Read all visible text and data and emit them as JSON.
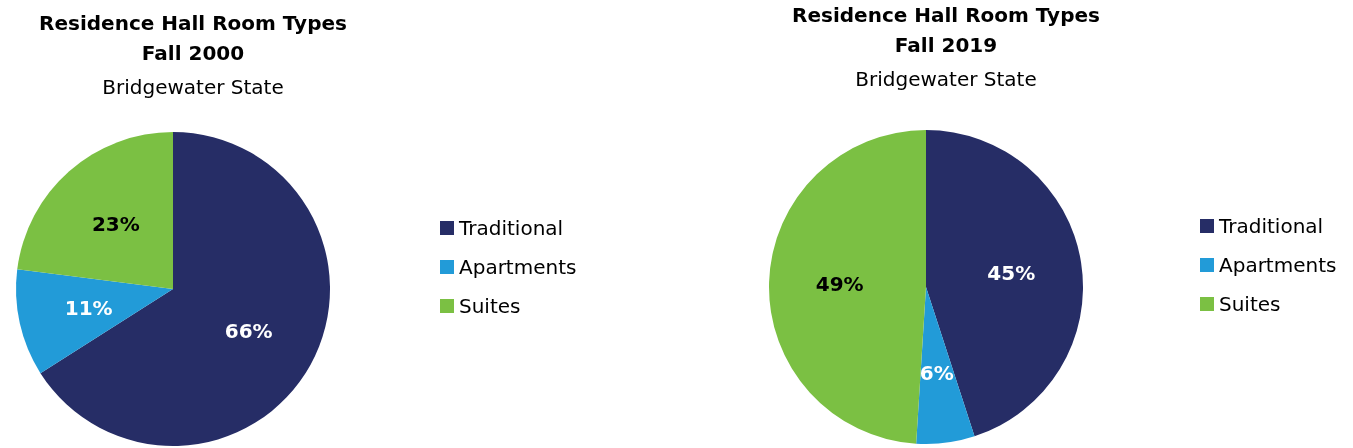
{
  "chart_data": [
    {
      "type": "pie",
      "title": "Residence Hall Room Types\nFall 2000",
      "subtitle": "Bridgewater State",
      "categories": [
        "Traditional",
        "Apartments",
        "Suites"
      ],
      "values": [
        66,
        11,
        23
      ],
      "colors": [
        "#262d66",
        "#229bd8",
        "#7bc043"
      ],
      "value_labels": [
        "66%",
        "11%",
        "23%"
      ],
      "legend": "right"
    },
    {
      "type": "pie",
      "title": "Residence Hall Room Types\nFall 2019",
      "subtitle": "Bridgewater State",
      "categories": [
        "Traditional",
        "Apartments",
        "Suites"
      ],
      "values": [
        45,
        6,
        49
      ],
      "colors": [
        "#262d66",
        "#229bd8",
        "#7bc043"
      ],
      "value_labels": [
        "45%",
        "6%",
        "49%"
      ],
      "legend": "right"
    }
  ]
}
